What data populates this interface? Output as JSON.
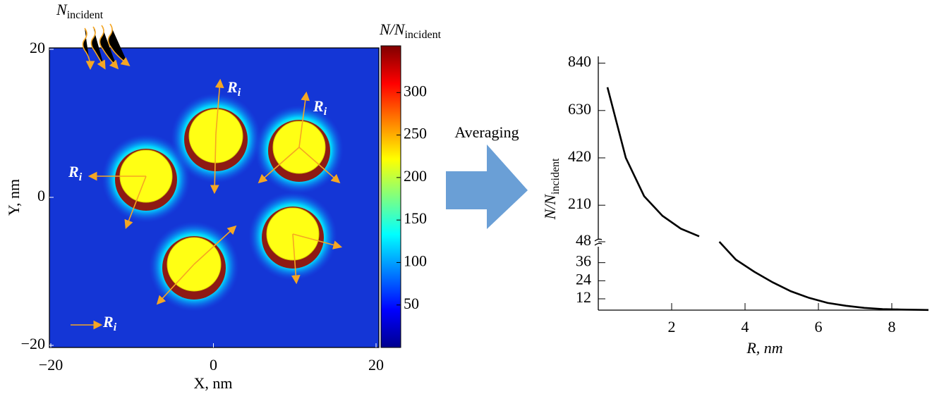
{
  "chart_data": [
    {
      "type": "heatmap",
      "corner_label": {
        "main": "N",
        "sub": "incident"
      },
      "annotation": {
        "main": "R",
        "sub": "i"
      },
      "xlabel": "X, nm",
      "ylabel": "Y, nm",
      "xlim": [
        -20,
        20
      ],
      "ylim": [
        -20,
        20
      ],
      "xticks": [
        {
          "value": -20,
          "label": "−20"
        },
        0,
        20
      ],
      "yticks": [
        {
          "value": -20,
          "label": "−20"
        },
        0,
        20
      ],
      "colorbar_label": {
        "main": "N/N",
        "sub": "incident"
      },
      "colormap": "jet",
      "clim": [
        0,
        355
      ],
      "cticks": [
        50,
        100,
        150,
        200,
        250,
        300
      ]
    },
    {
      "type": "line",
      "annotation": "Averaging",
      "xlabel": "R, nm",
      "ylabel": {
        "main": "N/N",
        "sub": "incident"
      },
      "xlim": [
        0,
        9
      ],
      "xticks": [
        2,
        4,
        6,
        8
      ],
      "ylim_lower": [
        4.5,
        48
      ],
      "ylim_upper": [
        48,
        870
      ],
      "yticks": [
        12,
        24,
        36,
        48,
        210,
        420,
        630,
        840
      ],
      "x": [
        0.25,
        0.75,
        1.25,
        1.75,
        2.25,
        2.75,
        3.0,
        3.3,
        3.75,
        4.25,
        4.75,
        5.25,
        5.75,
        6.25,
        6.75,
        7.25,
        7.75,
        8.25,
        8.75,
        9.0
      ],
      "series": [
        {
          "color": "#000000",
          "values": [
            733,
            420,
            250,
            163,
            106,
            72,
            null,
            48,
            38,
            30,
            23,
            17,
            12.6,
            9.3,
            7.4,
            6,
            5.2,
            4.9,
            4.7,
            4.6
          ]
        }
      ]
    }
  ]
}
